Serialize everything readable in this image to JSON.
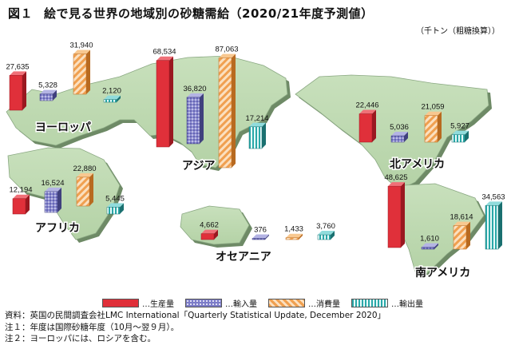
{
  "title": {
    "figure_no": "図１",
    "text": "絵で見る世界の地域別の砂糖需給（2020/21年度予測値）"
  },
  "unit": "（千トン（粗糖換算））",
  "legend": {
    "items": [
      {
        "key": "production",
        "label": "…生産量",
        "color": "#e0303a"
      },
      {
        "key": "imports",
        "label": "…輸入量",
        "color": "#7c7cc8"
      },
      {
        "key": "consumption",
        "label": "…消費量",
        "color": "#f0a050"
      },
      {
        "key": "exports",
        "label": "…輸出量",
        "color": "#3cb8b8"
      }
    ]
  },
  "notes": [
    "資料：英国の民間調査会社LMC International「Quarterly Statistical Update, December 2020」",
    "注１：年度は国際砂糖年度（10月～翌９月）。",
    "注２：ヨーロッパには、ロシアを含む。"
  ],
  "chart_data": {
    "type": "bar",
    "title": "絵で見る世界の地域別の砂糖需給（2020/21年度予測値）",
    "unit": "千トン（粗糖換算）",
    "series_names": [
      "生産量",
      "輸入量",
      "消費量",
      "輸出量"
    ],
    "regions": [
      {
        "name": "ヨーロッパ",
        "values": [
          27635,
          5328,
          31940,
          2120
        ]
      },
      {
        "name": "アジア",
        "values": [
          68534,
          36820,
          87063,
          17214
        ]
      },
      {
        "name": "アフリカ",
        "values": [
          12194,
          16524,
          22880,
          5445
        ]
      },
      {
        "name": "オセアニア",
        "values": [
          4662,
          376,
          1433,
          3760
        ]
      },
      {
        "name": "北アメリカ",
        "values": [
          22446,
          5036,
          21059,
          5927
        ]
      },
      {
        "name": "南アメリカ",
        "values": [
          48625,
          1610,
          18614,
          34563
        ]
      }
    ]
  }
}
